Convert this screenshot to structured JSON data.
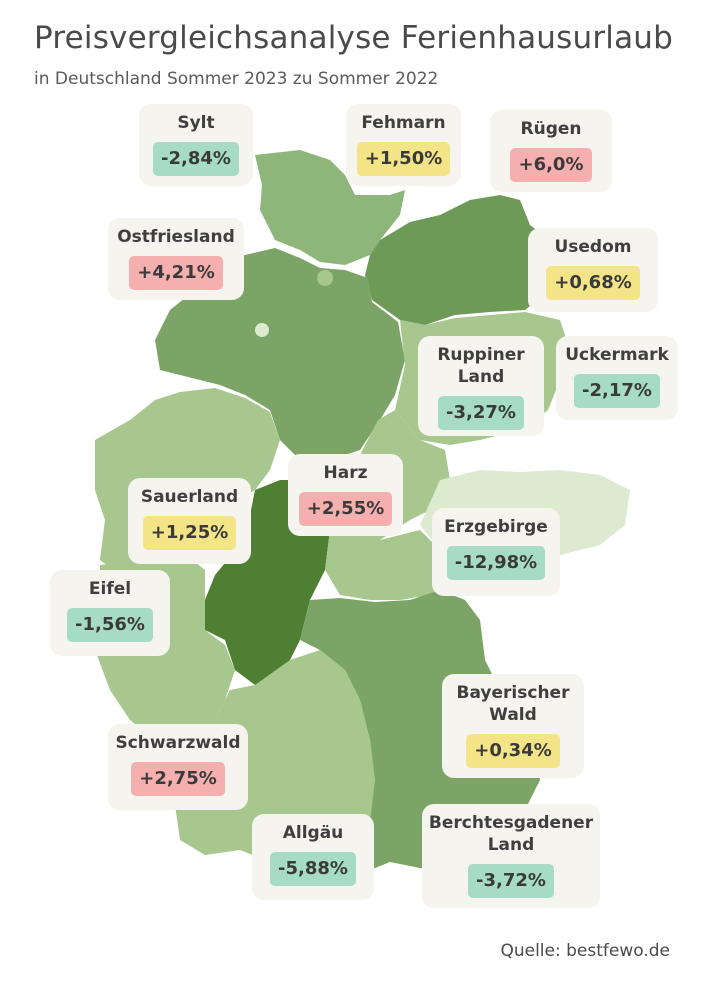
{
  "title": "Preisvergleichsanalyse Ferienhausurlaub",
  "subtitle": "in Deutschland Sommer 2023 zu Sommer 2022",
  "source": "Quelle: bestfewo.de",
  "colors": {
    "negative": "#a6dcc5",
    "positive_small": "#f3e487",
    "positive_large": "#f6afaf",
    "card_background": "#f6f4ee",
    "map_greens": [
      "#dcebd0",
      "#a7c78e",
      "#8fb67a",
      "#7da467",
      "#6e9a58",
      "#4f7f33"
    ]
  },
  "regions": [
    {
      "name": "Sylt",
      "value": "-2,84%",
      "change": -2.84
    },
    {
      "name": "Fehmarn",
      "value": "+1,50%",
      "change": 1.5
    },
    {
      "name": "Rügen",
      "value": "+6,0%",
      "change": 6.0
    },
    {
      "name": "Ostfriesland",
      "value": "+4,21%",
      "change": 4.21
    },
    {
      "name": "Usedom",
      "value": "+0,68%",
      "change": 0.68
    },
    {
      "name": "Ruppiner\nLand",
      "value": "-3,27%",
      "change": -3.27
    },
    {
      "name": "Uckermark",
      "value": "-2,17%",
      "change": -2.17
    },
    {
      "name": "Harz",
      "value": "+2,55%",
      "change": 2.55
    },
    {
      "name": "Sauerland",
      "value": "+1,25%",
      "change": 1.25
    },
    {
      "name": "Erzgebirge",
      "value": "-12,98%",
      "change": -12.98
    },
    {
      "name": "Eifel",
      "value": "-1,56%",
      "change": -1.56
    },
    {
      "name": "Bayerischer\nWald",
      "value": "+0,34%",
      "change": 0.34
    },
    {
      "name": "Schwarzwald",
      "value": "+2,75%",
      "change": 2.75
    },
    {
      "name": "Allgäu",
      "value": "-5,88%",
      "change": -5.88
    },
    {
      "name": "Berchtesgadener\nLand",
      "value": "-3,72%",
      "change": -3.72
    }
  ]
}
